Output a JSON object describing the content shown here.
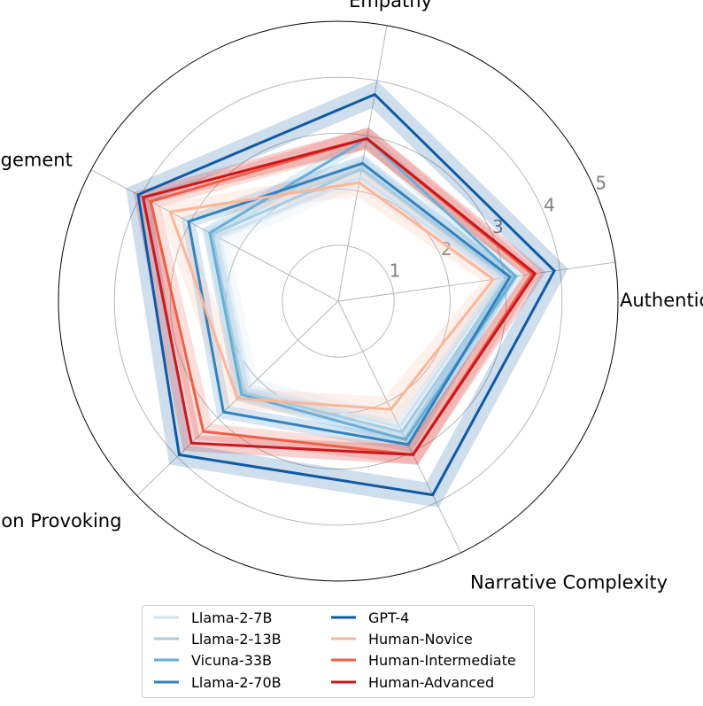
{
  "chart_data": {
    "type": "radar",
    "axes": [
      "Authenticity",
      "Empathy",
      "Engagement",
      "Emotion Provoking",
      "Narrative Complexity"
    ],
    "r_ticks": [
      "1",
      "2",
      "3",
      "4",
      "5"
    ],
    "r_range": [
      0,
      5
    ],
    "grid": true,
    "legend_position": "bottom",
    "series": [
      {
        "name": "Llama-2-7B",
        "color": "#cfe1f2",
        "values": [
          2.95,
          2.25,
          2.45,
          2.25,
          2.5
        ],
        "band": [
          0.2,
          0.2,
          0.25,
          0.25,
          0.25
        ]
      },
      {
        "name": "Llama-2-13B",
        "color": "#a3cce3",
        "values": [
          3.05,
          2.4,
          2.55,
          2.35,
          2.6
        ],
        "band": [
          0.2,
          0.2,
          0.2,
          0.2,
          0.2
        ]
      },
      {
        "name": "Vicuna-33B",
        "color": "#6aaed6",
        "values": [
          3.2,
          2.95,
          2.6,
          2.4,
          2.75
        ],
        "band": [
          0.15,
          0.15,
          0.15,
          0.15,
          0.15
        ]
      },
      {
        "name": "Llama-2-70B",
        "color": "#3282be",
        "values": [
          3.1,
          2.5,
          3.03,
          2.85,
          2.85
        ],
        "band": [
          0.15,
          0.15,
          0.15,
          0.15,
          0.15
        ]
      },
      {
        "name": "GPT-4",
        "color": "#0f5aa3",
        "values": [
          3.9,
          3.75,
          4.05,
          3.95,
          3.85
        ],
        "band": [
          0.25,
          0.25,
          0.25,
          0.25,
          0.25
        ]
      },
      {
        "name": "Human-Novice",
        "color": "#fbb699",
        "values": [
          2.8,
          2.15,
          3.4,
          2.5,
          2.15
        ],
        "band": [
          0.2,
          0.25,
          0.25,
          0.25,
          0.25
        ]
      },
      {
        "name": "Human-Intermediate",
        "color": "#ef5f47",
        "values": [
          3.5,
          2.95,
          3.8,
          3.35,
          3.05
        ],
        "band": [
          0.15,
          0.2,
          0.2,
          0.2,
          0.2
        ]
      },
      {
        "name": "Human-Advanced",
        "color": "#cb181d",
        "values": [
          3.55,
          2.95,
          3.95,
          3.65,
          3.05
        ],
        "band": [
          0.2,
          0.2,
          0.2,
          0.2,
          0.2
        ]
      }
    ]
  }
}
